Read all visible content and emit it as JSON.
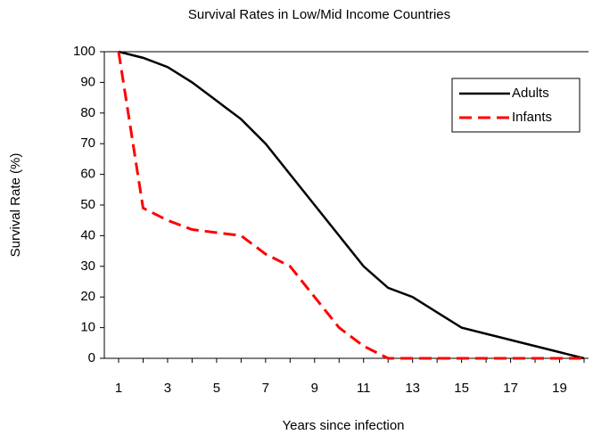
{
  "chart_data": {
    "type": "line",
    "title": "Survival Rates in Low/Mid Income Countries",
    "x_label": "Years since infection",
    "y_label": "Survival Rate (%)",
    "categories": [
      "1",
      null,
      "3",
      null,
      "5",
      null,
      "7",
      null,
      "9",
      null,
      "11",
      null,
      "13",
      null,
      "15",
      null,
      "17",
      null,
      "19",
      null
    ],
    "series": [
      {
        "name": "Adults",
        "color": "#000000",
        "dash": false,
        "values": [
          100,
          98,
          95,
          90,
          84,
          78,
          70,
          60,
          50,
          40,
          30,
          23,
          20,
          15,
          10,
          8,
          6,
          4,
          2,
          0
        ]
      },
      {
        "name": "Infants",
        "color": "#ff0000",
        "dash": true,
        "values": [
          100,
          49,
          45,
          42,
          41,
          40,
          34,
          30,
          20,
          10,
          4,
          0,
          0,
          0,
          0,
          0,
          0,
          0,
          0,
          0
        ]
      }
    ],
    "ylim": [
      0,
      100
    ],
    "yticks": [
      0,
      10,
      20,
      30,
      40,
      50,
      60,
      70,
      80,
      90,
      100
    ],
    "legend": "upper right"
  }
}
